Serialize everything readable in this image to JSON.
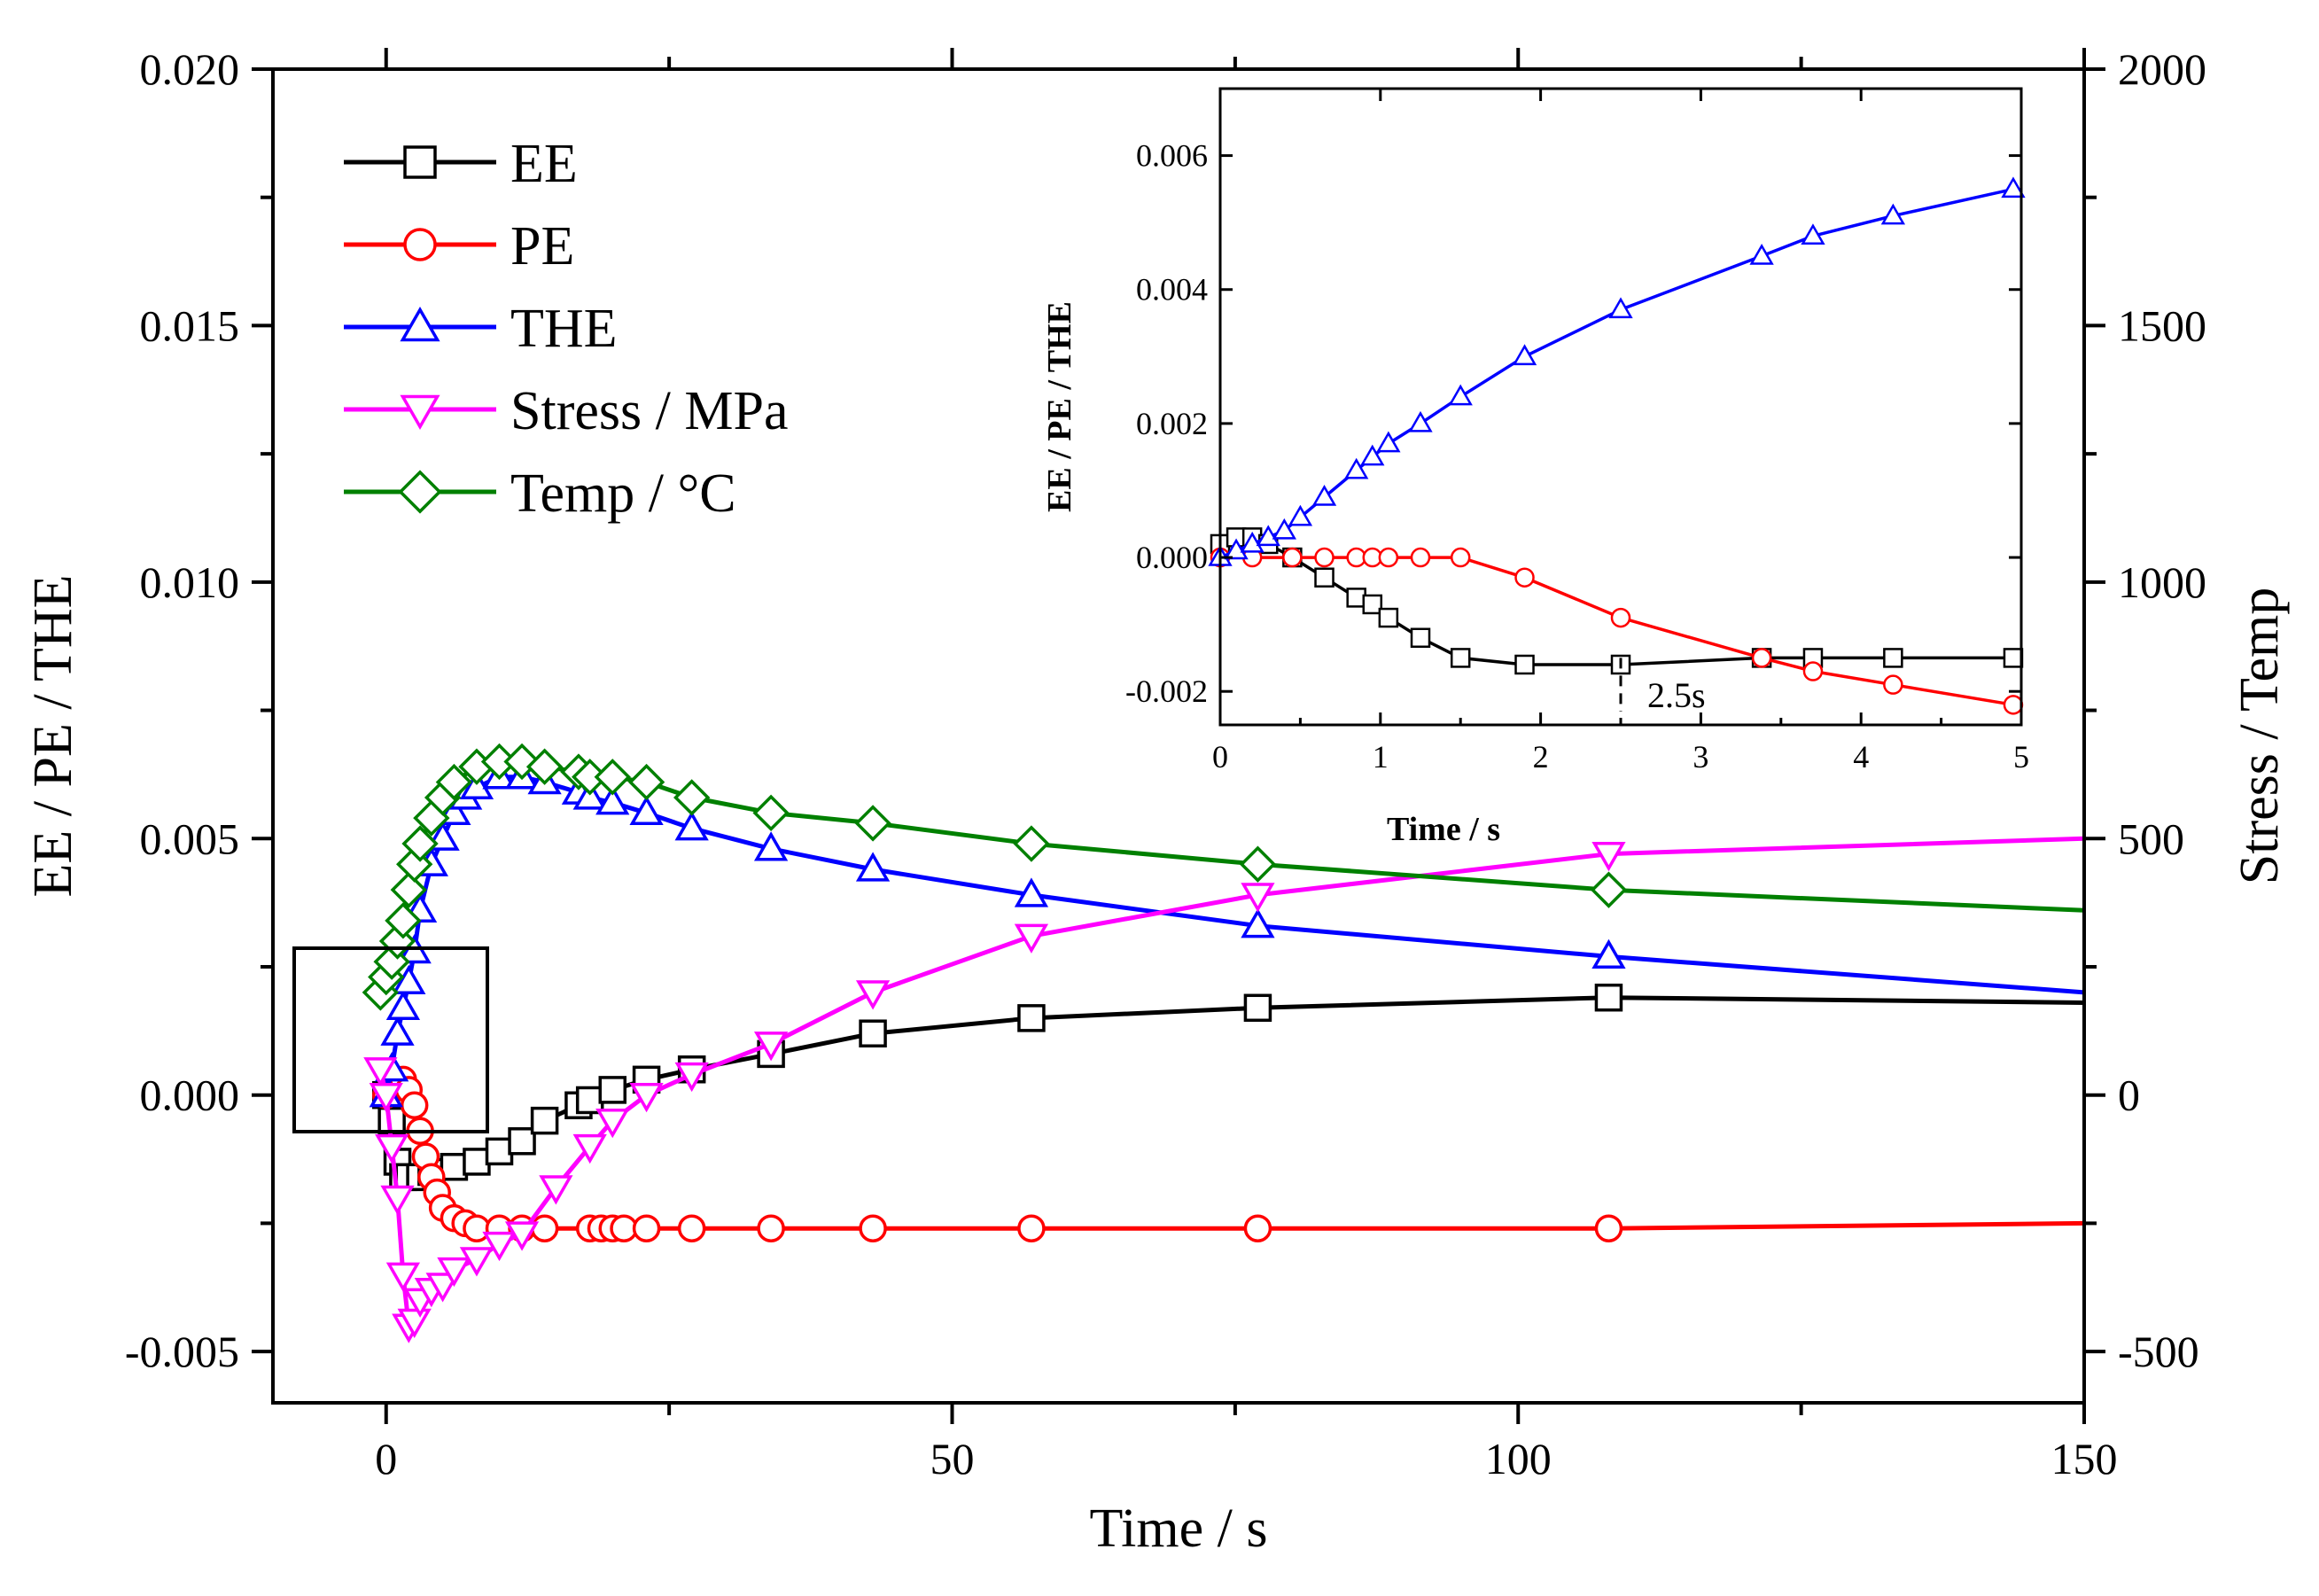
{
  "chart_data": [
    {
      "type": "line",
      "xlabel": "Time / s",
      "ylabel": "EE / PE / THE",
      "y2label": "Stress / Temp",
      "xlim": [
        -10,
        150
      ],
      "ylim": [
        -0.006,
        0.02
      ],
      "y2lim": [
        -600,
        2000
      ],
      "x_ticks": [
        0,
        50,
        100,
        150
      ],
      "y_ticks": [
        -0.005,
        0.0,
        0.005,
        0.01,
        0.015,
        0.02
      ],
      "y_tick_labels": [
        "-0.005",
        "0.000",
        "0.005",
        "0.010",
        "0.015",
        "0.020"
      ],
      "y2_ticks": [
        -500,
        0,
        500,
        1000,
        1500,
        2000
      ],
      "y2_tick_labels": [
        "-500",
        "0",
        "500",
        "1000",
        "1500",
        "2000"
      ],
      "legend_position": "top-left",
      "series": [
        {
          "name": "EE",
          "color": "#000000",
          "marker": "square",
          "axis": "left",
          "x": [
            0,
            0.5,
            1,
            1.5,
            2,
            3,
            4,
            6,
            8,
            10,
            12,
            14,
            17,
            18,
            20,
            23,
            27,
            34,
            43,
            57,
            77,
            108,
            150
          ],
          "y": [
            0.0,
            -0.0005,
            -0.0013,
            -0.0016,
            -0.0016,
            -0.0016,
            -0.0015,
            -0.0014,
            -0.0013,
            -0.0011,
            -0.0009,
            -0.0005,
            -0.0002,
            -0.0001,
            0.0001,
            0.0003,
            0.0005,
            0.0008,
            0.0012,
            0.0015,
            0.0017,
            0.0019,
            0.0018
          ]
        },
        {
          "name": "PE",
          "color": "#ff0000",
          "marker": "circle",
          "axis": "left",
          "x": [
            0,
            0.5,
            1,
            1.5,
            2,
            2.5,
            3,
            3.5,
            4,
            4.5,
            5,
            6,
            7,
            8,
            10,
            12,
            14,
            18,
            19,
            20,
            21,
            23,
            27,
            34,
            43,
            57,
            77,
            108,
            150
          ],
          "y": [
            0.0,
            0.0001,
            0.0002,
            0.0003,
            0.0001,
            -0.0002,
            -0.0007,
            -0.0012,
            -0.0016,
            -0.0019,
            -0.0022,
            -0.0024,
            -0.0025,
            -0.0026,
            -0.0026,
            -0.0026,
            -0.0026,
            -0.0026,
            -0.0026,
            -0.0026,
            -0.0026,
            -0.0026,
            -0.0026,
            -0.0026,
            -0.0026,
            -0.0026,
            -0.0026,
            -0.0026,
            -0.0025
          ]
        },
        {
          "name": "THE",
          "color": "#0000ff",
          "marker": "triangle-up",
          "axis": "left",
          "x": [
            0,
            0.5,
            1,
            1.5,
            2,
            2.5,
            3,
            4,
            5,
            6,
            7,
            8,
            10,
            12,
            14,
            17,
            18,
            20,
            23,
            27,
            34,
            43,
            57,
            77,
            108,
            150
          ],
          "y": [
            0.0,
            0.0005,
            0.0012,
            0.0017,
            0.0022,
            0.0028,
            0.0036,
            0.0045,
            0.005,
            0.0055,
            0.0058,
            0.006,
            0.0062,
            0.0062,
            0.0061,
            0.0059,
            0.0058,
            0.0057,
            0.0055,
            0.0052,
            0.0048,
            0.0044,
            0.0039,
            0.0033,
            0.0027,
            0.002
          ]
        },
        {
          "name": "Stress / MPa",
          "color": "#ff00ff",
          "marker": "triangle-down",
          "axis": "right",
          "x": [
            -0.5,
            0,
            0.5,
            1,
            1.5,
            2,
            2.5,
            3,
            4,
            5,
            6,
            8,
            10,
            12,
            15,
            18,
            20,
            23,
            27,
            34,
            43,
            57,
            77,
            108,
            150
          ],
          "y": [
            50,
            0,
            -100,
            -200,
            -350,
            -450,
            -440,
            -400,
            -380,
            -370,
            -340,
            -320,
            -290,
            -270,
            -180,
            -100,
            -50,
            0,
            40,
            100,
            200,
            310,
            390,
            470,
            500
          ]
        },
        {
          "name": "Temp / °C",
          "color": "#008000",
          "marker": "diamond",
          "axis": "right",
          "x": [
            -0.5,
            0,
            0.5,
            1,
            1.5,
            2,
            2.5,
            3,
            4,
            5,
            6,
            8,
            10,
            12,
            14,
            17,
            18,
            20,
            23,
            27,
            34,
            43,
            57,
            77,
            108,
            150
          ],
          "y": [
            200,
            230,
            260,
            300,
            340,
            400,
            450,
            490,
            540,
            580,
            610,
            640,
            650,
            650,
            640,
            630,
            620,
            620,
            610,
            580,
            550,
            530,
            490,
            450,
            400,
            360
          ]
        }
      ]
    },
    {
      "type": "line",
      "title": "",
      "xlabel": "Time / s",
      "ylabel": "EE / PE / THE",
      "xlim": [
        0,
        5
      ],
      "ylim": [
        -0.0025,
        0.007
      ],
      "x_ticks": [
        0,
        1,
        2,
        3,
        4,
        5
      ],
      "x_tick_labels": [
        "0",
        "1",
        "2",
        "3",
        "4",
        "5"
      ],
      "y_ticks": [
        -0.002,
        0.0,
        0.002,
        0.004,
        0.006
      ],
      "y_tick_labels": [
        "-0.002",
        "0.000",
        "0.002",
        "0.004",
        "0.006"
      ],
      "annotation": {
        "text": "2.5s",
        "x": 2.5
      },
      "series": [
        {
          "name": "EE",
          "color": "#000000",
          "marker": "square",
          "x": [
            0,
            0.1,
            0.2,
            0.3,
            0.45,
            0.65,
            0.85,
            0.95,
            1.05,
            1.25,
            1.5,
            1.9,
            2.5,
            3.38,
            3.7,
            4.2,
            4.95
          ],
          "y": [
            0.0002,
            0.0003,
            0.0003,
            0.0002,
            0.0,
            -0.0003,
            -0.0006,
            -0.0007,
            -0.0009,
            -0.0012,
            -0.0015,
            -0.0016,
            -0.0016,
            -0.0015,
            -0.0015,
            -0.0015,
            -0.0015
          ]
        },
        {
          "name": "PE",
          "color": "#ff0000",
          "marker": "circle",
          "x": [
            0,
            0.2,
            0.45,
            0.65,
            0.85,
            0.95,
            1.05,
            1.25,
            1.5,
            1.9,
            2.5,
            3.38,
            3.7,
            4.2,
            4.95
          ],
          "y": [
            0.0,
            0.0,
            0.0,
            0.0,
            0.0,
            0.0,
            0.0,
            0.0,
            0.0,
            -0.0003,
            -0.0009,
            -0.0015,
            -0.0017,
            -0.0019,
            -0.0022
          ]
        },
        {
          "name": "THE",
          "color": "#0000ff",
          "marker": "triangle-up",
          "x": [
            0,
            0.1,
            0.2,
            0.3,
            0.4,
            0.5,
            0.65,
            0.85,
            0.95,
            1.05,
            1.25,
            1.5,
            1.9,
            2.5,
            3.38,
            3.7,
            4.2,
            4.95
          ],
          "y": [
            0.0,
            0.0001,
            0.0002,
            0.0003,
            0.0004,
            0.0006,
            0.0009,
            0.0013,
            0.0015,
            0.0017,
            0.002,
            0.0024,
            0.003,
            0.0037,
            0.0045,
            0.0048,
            0.0051,
            0.0055
          ]
        }
      ]
    }
  ]
}
